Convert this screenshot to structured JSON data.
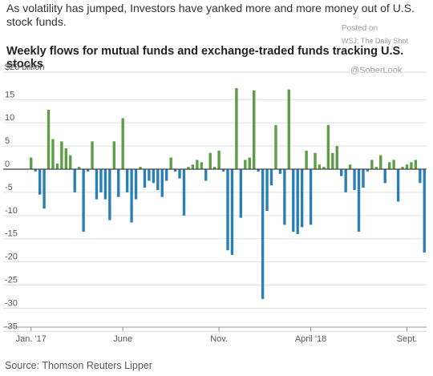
{
  "headline": "As volatility has jumped, Investors have yanked more and more money out of U.S. stock funds.",
  "watermark": {
    "posted_on": "Posted on",
    "source": "WSJ: The Daily Shot",
    "handle": "@SoberLook"
  },
  "source_note": "Source: Thomson Reuters Lipper",
  "colors": {
    "positive": "#5b9e45",
    "negative": "#2a7fb5",
    "grid": "#dddddd",
    "axis": "#444444"
  },
  "chart_data": {
    "type": "bar",
    "title": "Weekly flows for mutual funds and exchange-traded funds tracking U.S. stocks",
    "ylabel": "",
    "y_unit_label": "$20 billion",
    "ylim": [
      -35,
      20
    ],
    "yticks": [
      15,
      10,
      5,
      0,
      -5,
      -10,
      -15,
      -20,
      -25,
      -30,
      -35
    ],
    "x_labels": [
      "Jan. '17",
      "June",
      "Nov.",
      "April '18",
      "Sept."
    ],
    "x_label_weeks": [
      0,
      21,
      43,
      64,
      86
    ],
    "values": [
      2.5,
      -0.5,
      -5.5,
      -8.5,
      12.8,
      6.5,
      1.2,
      6.0,
      4.5,
      3.0,
      -5.0,
      0.5,
      -13.5,
      -0.5,
      6.0,
      -6.5,
      -5.0,
      -6.5,
      -11.0,
      6.0,
      -6.0,
      11.0,
      -5.0,
      -11.5,
      -6.5,
      0.5,
      -4.0,
      -2.5,
      -3.0,
      -4.5,
      -6.0,
      -2.5,
      2.5,
      -0.5,
      -2.0,
      -10.0,
      0.5,
      1.0,
      2.0,
      1.5,
      -2.5,
      3.5,
      0.5,
      4.0,
      -0.5,
      -17.5,
      -18.5,
      17.5,
      -10.5,
      2.0,
      2.5,
      17.0,
      -0.5,
      -28.0,
      -9.0,
      -3.5,
      9.5,
      -1.0,
      -12.0,
      17.2,
      -13.5,
      -14.0,
      -12.5,
      4.0,
      -12.0,
      3.5,
      1.0,
      0.5,
      9.5,
      3.5,
      5.0,
      -1.5,
      -5.0,
      1.0,
      -4.5,
      -13.5,
      -4.0,
      -0.5,
      2.0,
      0.5,
      3.0,
      -3.0,
      1.5,
      2.0,
      -7.0,
      0.5,
      1.0,
      1.5,
      2.0,
      -3.0,
      -18.0
    ]
  }
}
